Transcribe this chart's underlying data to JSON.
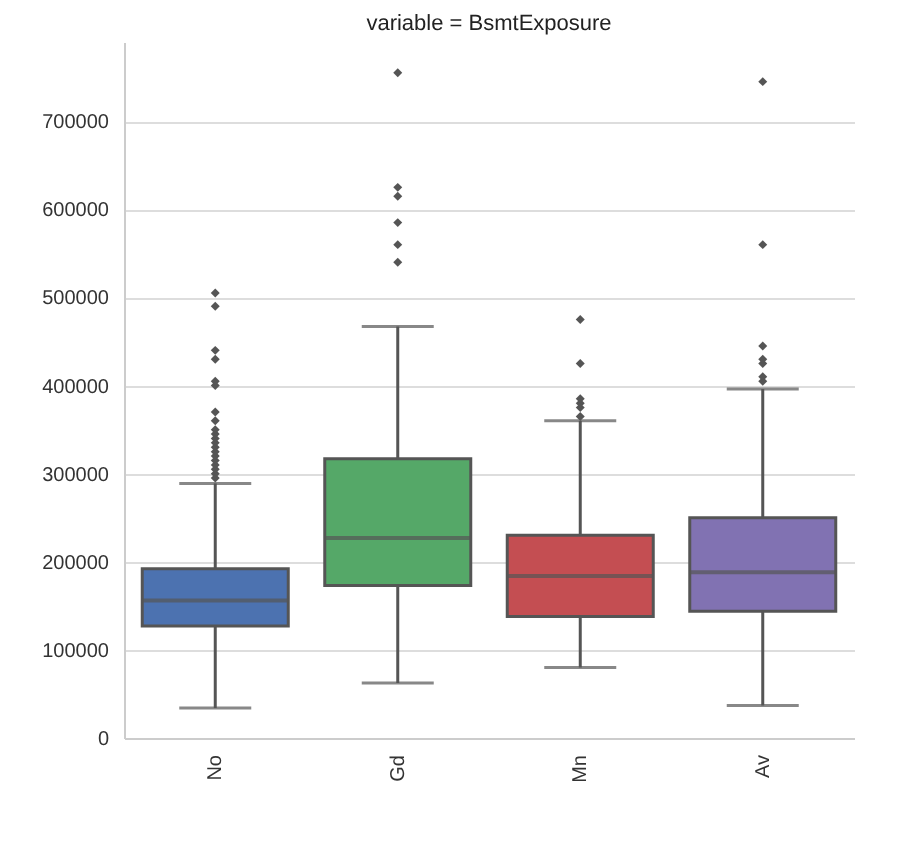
{
  "chart_data": {
    "type": "box",
    "title": "variable = BsmtExposure",
    "categories": [
      "No",
      "Gd",
      "Mn",
      "Av"
    ],
    "colors": [
      "#4c72b0",
      "#55a868",
      "#c44e52",
      "#8172b2"
    ],
    "boxes": [
      {
        "low": 34000,
        "q1": 127000,
        "median": 156000,
        "q3": 192000,
        "high": 289000,
        "outliers": [
          295000,
          300000,
          305000,
          310000,
          315000,
          320000,
          325000,
          330000,
          335000,
          340000,
          345000,
          350000,
          360000,
          370000,
          400000,
          405000,
          430000,
          440000,
          490000,
          505000
        ]
      },
      {
        "low": 62500,
        "q1": 173000,
        "median": 227000,
        "q3": 317000,
        "high": 467000,
        "outliers": [
          540000,
          560000,
          585000,
          615000,
          625000,
          755000
        ]
      },
      {
        "low": 80000,
        "q1": 138000,
        "median": 184000,
        "q3": 230000,
        "high": 360000,
        "outliers": [
          365000,
          375000,
          380000,
          385000,
          425000,
          475000
        ]
      },
      {
        "low": 37000,
        "q1": 144000,
        "median": 188000,
        "q3": 250000,
        "high": 396000,
        "outliers": [
          405000,
          410000,
          425000,
          430000,
          445000,
          560000,
          745000
        ]
      }
    ],
    "ylim": [
      0,
      790000
    ],
    "yticks": [
      0,
      100000,
      200000,
      300000,
      400000,
      500000,
      600000,
      700000
    ],
    "grid": "y",
    "marker": "diamond"
  }
}
